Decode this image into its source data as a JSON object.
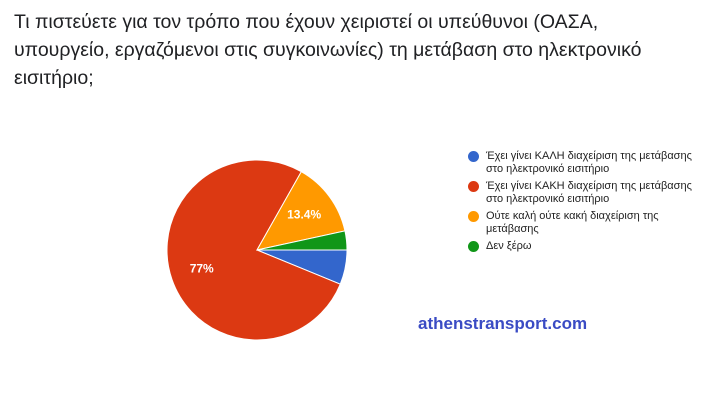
{
  "chart_data": {
    "type": "pie",
    "title": "Τι πιστεύετε για τον τρόπο που έχουν χειριστεί οι υπεύθυνοι (ΟΑΣΑ, υπουργείο, εργαζόμενοι στις συγκοινωνίες) τη μετάβαση στο ηλεκτρονικό εισιτήριο;",
    "categories": [
      "Έχει γίνει ΚΑΛΗ διαχείριση της μετάβασης στο ηλεκτρονικό εισιτήριο",
      "Έχει γίνει ΚΑΚΗ διαχείριση της μετάβασης στο ηλεκτρονικό εισιτήριο",
      "Ούτε καλή ούτε κακή διαχείριση της μετάβασης",
      "Δεν ξέρω"
    ],
    "values": [
      6.2,
      77,
      13.4,
      3.4
    ],
    "value_labels": [
      null,
      "77%",
      "13.4%",
      null
    ],
    "colors": [
      "#3366cc",
      "#dc3912",
      "#ff9900",
      "#109618"
    ],
    "legend": "right",
    "source": "athenstransport.com"
  }
}
